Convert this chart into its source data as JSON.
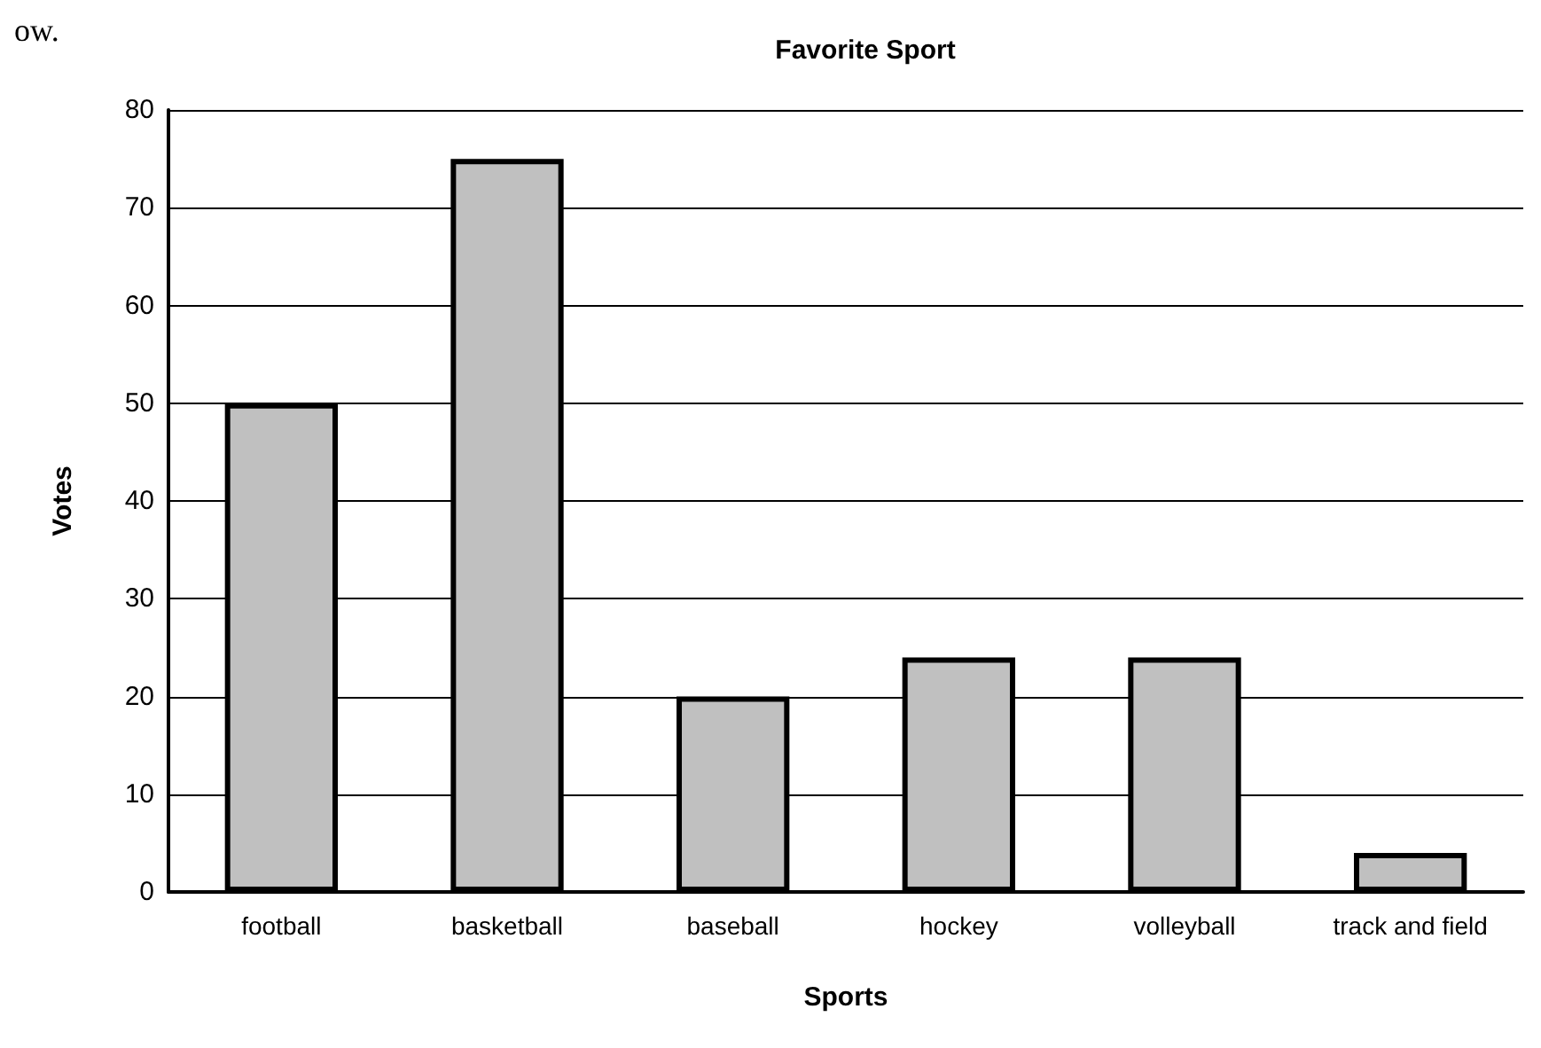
{
  "chart_data": {
    "type": "bar",
    "title": "Favorite Sport",
    "xlabel": "Sports",
    "ylabel": "Votes",
    "categories": [
      "football",
      "basketball",
      "baseball",
      "hockey",
      "volleyball",
      "track and field"
    ],
    "values": [
      50,
      75,
      20,
      24,
      24,
      4
    ],
    "color": "#c0c0c0",
    "ylim": [
      0,
      80
    ],
    "yticks": [
      0,
      10,
      20,
      30,
      40,
      50,
      60,
      70,
      80
    ],
    "grid": "y",
    "annotations": [
      "ow."
    ]
  }
}
